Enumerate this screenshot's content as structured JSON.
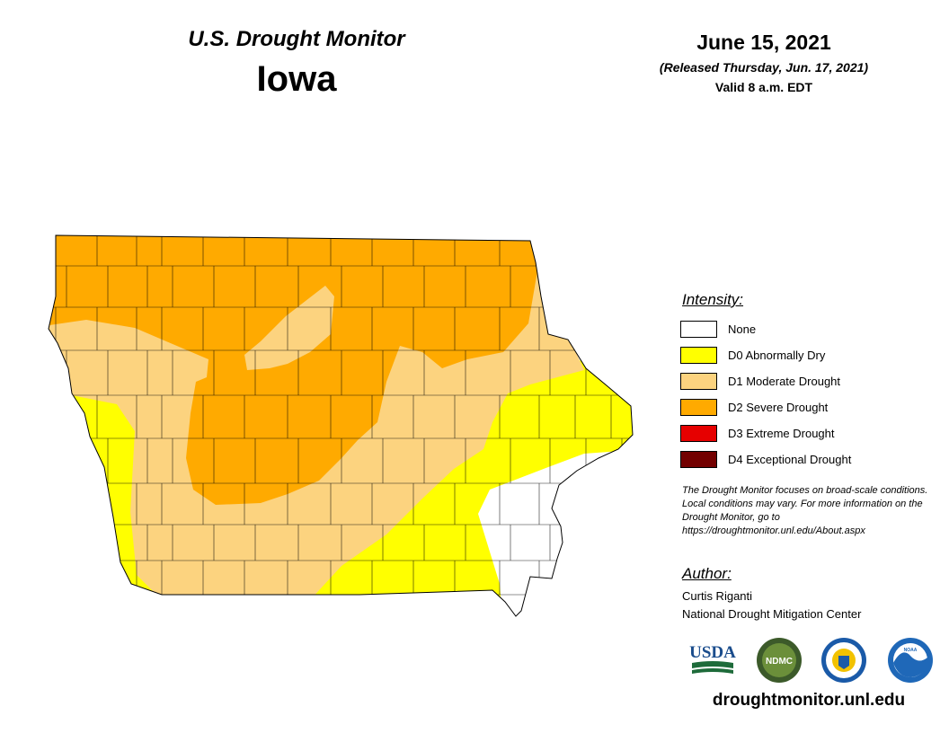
{
  "header": {
    "monitor_title": "U.S. Drought Monitor",
    "state": "Iowa",
    "date": "June 15, 2021",
    "released": "(Released Thursday, Jun. 17, 2021)",
    "valid": "Valid 8 a.m. EDT"
  },
  "legend": {
    "title": "Intensity:",
    "items": [
      {
        "label": "None",
        "color": "#ffffff"
      },
      {
        "label": "D0 Abnormally Dry",
        "color": "#ffff00"
      },
      {
        "label": "D1 Moderate Drought",
        "color": "#fcd37f"
      },
      {
        "label": "D2 Severe Drought",
        "color": "#ffaa00"
      },
      {
        "label": "D3 Extreme Drought",
        "color": "#e60000"
      },
      {
        "label": "D4 Exceptional Drought",
        "color": "#730000"
      }
    ]
  },
  "note": "The Drought Monitor focuses on broad-scale conditions. Local conditions may vary. For more information on the Drought Monitor, go to https://droughtmonitor.unl.edu/About.aspx",
  "author": {
    "title": "Author:",
    "name": "Curtis Riganti",
    "org": "National Drought Mitigation Center"
  },
  "logos": {
    "usda": "USDA",
    "ndmc": "NDMC",
    "doc": "DOC",
    "noaa": "NOAA"
  },
  "website": "droughtmonitor.unl.edu"
}
